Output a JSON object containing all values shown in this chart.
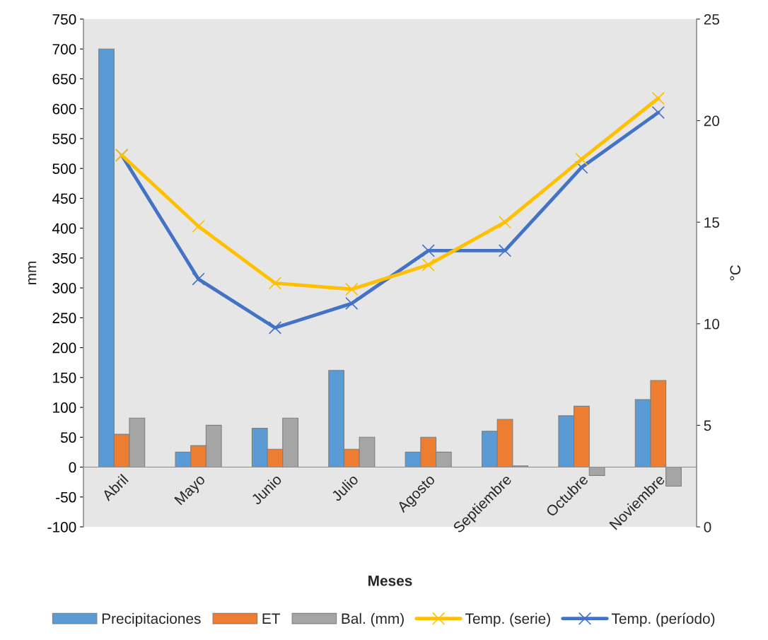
{
  "chart_data": {
    "type": "bar",
    "xlabel": "Meses",
    "ylabel": "mm",
    "y2label": "°C",
    "categories": [
      "Abril",
      "Mayo",
      "Junio",
      "Julio",
      "Agosto",
      "Septiembre",
      "Octubre",
      "Noviembre"
    ],
    "series": [
      {
        "name": "Precipitaciones",
        "color": "#5b9bd5",
        "values": [
          700,
          25,
          65,
          162,
          25,
          60,
          86,
          113
        ]
      },
      {
        "name": "ET",
        "color": "#ed7d31",
        "values": [
          55,
          36,
          30,
          30,
          50,
          80,
          102,
          145
        ]
      },
      {
        "name": "Bal. (mm)",
        "color": "#a5a5a5",
        "values": [
          82,
          70,
          82,
          50,
          25,
          2,
          -14,
          -32
        ]
      },
      {
        "name": "Temp. (serie)",
        "type": "line",
        "axis": "y2",
        "marker": "cross",
        "color": "#ffc000",
        "values": [
          18.3,
          14.8,
          12.0,
          11.7,
          12.9,
          15.0,
          18.1,
          21.1
        ]
      },
      {
        "name": "Temp. (período)",
        "type": "line",
        "axis": "y2",
        "marker": "cross",
        "color": "#4472c4",
        "values": [
          18.3,
          12.2,
          9.8,
          11.0,
          13.6,
          13.6,
          17.7,
          20.4
        ]
      }
    ],
    "ylim": [
      -100,
      750
    ],
    "yticks": [
      -100,
      -50,
      0,
      50,
      100,
      150,
      200,
      250,
      300,
      350,
      400,
      450,
      500,
      550,
      600,
      650,
      700,
      750
    ],
    "y2lim": [
      0,
      25
    ],
    "y2ticks": [
      0,
      5,
      10,
      15,
      20,
      25
    ],
    "legend": "bottom"
  }
}
